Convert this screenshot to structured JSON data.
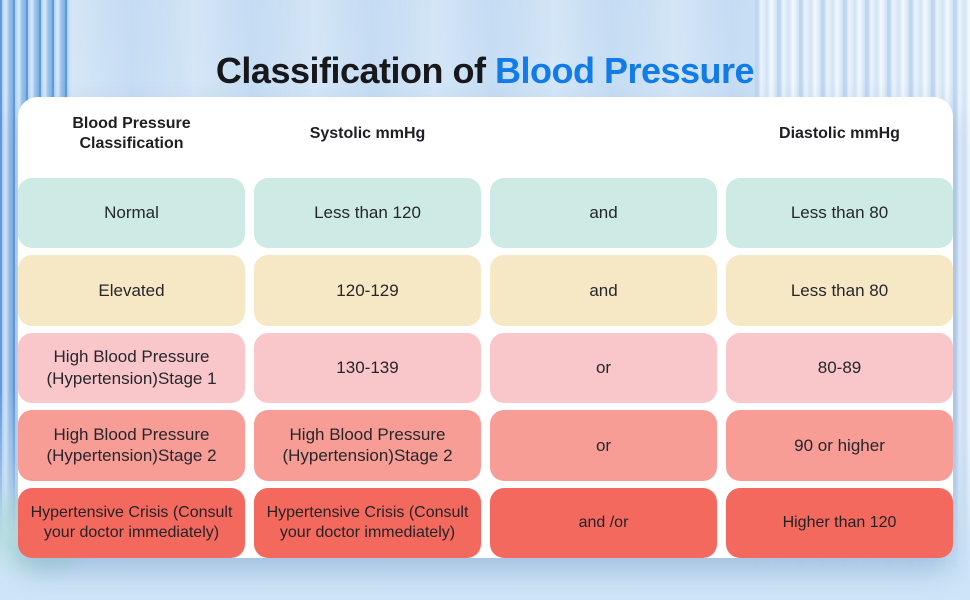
{
  "title": {
    "prefix": "Classification of ",
    "highlight": "Blood Pressure",
    "highlight_color": "#117ce8"
  },
  "chart_data": {
    "type": "table",
    "title": "Classification of Blood Pressure",
    "columns": [
      "Blood Pressure Classification",
      "Systolic mmHg",
      "",
      "Diastolic mmHg"
    ],
    "rows": [
      {
        "category": "Normal",
        "color": "#cdeae5",
        "cells": [
          "Normal",
          "Less than 120",
          "and",
          "Less than 80"
        ]
      },
      {
        "category": "Elevated",
        "color": "#f6e8c5",
        "cells": [
          "Elevated",
          "120-129",
          "and",
          "Less than 80"
        ]
      },
      {
        "category": "Hypertension Stage 1",
        "color": "#f9c7ca",
        "cells": [
          "High Blood Pressure (Hypertension)Stage 1",
          "130-139",
          "or",
          "80-89"
        ]
      },
      {
        "category": "Hypertension Stage 2",
        "color": "#f79d96",
        "cells": [
          "High Blood Pressure (Hypertension)Stage 2",
          "High Blood Pressure (Hypertension)Stage 2",
          "or",
          "90 or higher"
        ]
      },
      {
        "category": "Hypertensive Crisis",
        "color": "#f4695e",
        "cells": [
          "Hypertensive Crisis (Consult your doctor immediately)",
          "Hypertensive Crisis (Consult your doctor immediately)",
          "and /or",
          "Higher than 120"
        ]
      }
    ]
  }
}
